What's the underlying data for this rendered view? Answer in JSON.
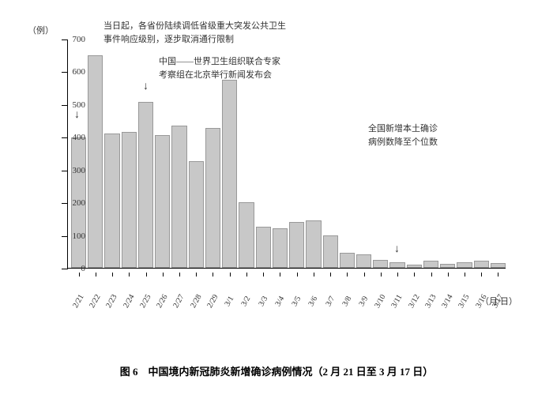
{
  "chart": {
    "type": "bar",
    "y_unit": "（例）",
    "x_unit": "（月/日）",
    "ylim": [
      0,
      700
    ],
    "ytick_step": 100,
    "yticks": [
      0,
      100,
      200,
      300,
      400,
      500,
      600,
      700
    ],
    "categories": [
      "2/21",
      "2/22",
      "2/23",
      "2/24",
      "2/25",
      "2/26",
      "2/27",
      "2/28",
      "2/29",
      "3/1",
      "3/2",
      "3/3",
      "3/4",
      "3/5",
      "3/6",
      "3/7",
      "3/8",
      "3/9",
      "3/10",
      "3/11",
      "3/12",
      "3/13",
      "3/14",
      "3/15",
      "3/16",
      "3/17"
    ],
    "values": [
      398,
      650,
      410,
      415,
      508,
      405,
      435,
      325,
      428,
      575,
      200,
      125,
      120,
      140,
      145,
      100,
      45,
      40,
      25,
      18,
      10,
      22,
      12,
      18,
      22,
      15
    ],
    "bar_color": "#c8c8c8",
    "bar_border": "#999999",
    "background_color": "#ffffff",
    "axis_color": "#000000",
    "label_fontsize": 11,
    "xlabel_fontsize": 10,
    "xlabel_rotation": -60
  },
  "annotations": {
    "a1": {
      "text1": "当日起，各省份陆续调低省级重大突发公共卫生",
      "text2": "事件响应级别，逐步取消通行限制",
      "arrow_target_index": 0
    },
    "a2": {
      "text1": "中国——世界卫生组织联合专家",
      "text2": "考察组在北京举行新闻发布会",
      "arrow_target_index": 3
    },
    "a3": {
      "text1": "全国新增本土确诊",
      "text2": "病例数降至个位数",
      "arrow_target_index": 19
    }
  },
  "caption": "图 6　中国境内新冠肺炎新增确诊病例情况（2 月 21 日至 3 月 17 日）"
}
